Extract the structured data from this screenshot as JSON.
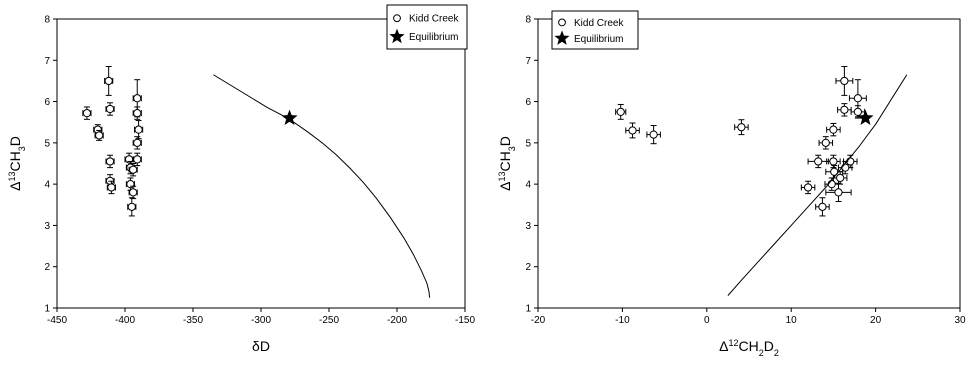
{
  "chart_data": [
    {
      "type": "scatter",
      "xlabel": "δD",
      "ylabel": "Δ¹³CH₃D",
      "xlim": [
        -450,
        -150
      ],
      "ylim": [
        1,
        8
      ],
      "xticks": [
        -450,
        -400,
        -350,
        -300,
        -250,
        -200,
        -150
      ],
      "yticks": [
        1,
        2,
        3,
        4,
        5,
        6,
        7,
        8
      ],
      "legend": {
        "placement": "top-right",
        "entries": [
          "Kidd Creek",
          "Equilibrium"
        ]
      },
      "series": [
        {
          "name": "Kidd Creek",
          "marker": "open-circle",
          "points": [
            {
              "x": -428,
              "y": 5.72,
              "xerr": 3,
              "yerr": 0.15
            },
            {
              "x": -420,
              "y": 5.32,
              "xerr": 3,
              "yerr": 0.12
            },
            {
              "x": -419,
              "y": 5.18,
              "xerr": 3,
              "yerr": 0.12
            },
            {
              "x": -412,
              "y": 6.5,
              "xerr": 3,
              "yerr": 0.35
            },
            {
              "x": -411,
              "y": 5.82,
              "xerr": 3,
              "yerr": 0.15
            },
            {
              "x": -411,
              "y": 4.55,
              "xerr": 3,
              "yerr": 0.15
            },
            {
              "x": -411,
              "y": 4.08,
              "xerr": 3,
              "yerr": 0.15
            },
            {
              "x": -410,
              "y": 3.92,
              "xerr": 3,
              "yerr": 0.15
            },
            {
              "x": -397,
              "y": 4.6,
              "xerr": 3,
              "yerr": 0.15
            },
            {
              "x": -396,
              "y": 4.4,
              "xerr": 3,
              "yerr": 0.15
            },
            {
              "x": -396,
              "y": 4.0,
              "xerr": 3,
              "yerr": 0.15
            },
            {
              "x": -395,
              "y": 3.45,
              "xerr": 3,
              "yerr": 0.22
            },
            {
              "x": -394,
              "y": 4.35,
              "xerr": 3,
              "yerr": 0.15
            },
            {
              "x": -394,
              "y": 3.8,
              "xerr": 3,
              "yerr": 0.15
            },
            {
              "x": -391,
              "y": 6.08,
              "xerr": 3,
              "yerr": 0.45
            },
            {
              "x": -391,
              "y": 5.72,
              "xerr": 3,
              "yerr": 0.15
            },
            {
              "x": -390,
              "y": 5.32,
              "xerr": 3,
              "yerr": 0.22
            },
            {
              "x": -391,
              "y": 5.0,
              "xerr": 3,
              "yerr": 0.15
            },
            {
              "x": -391,
              "y": 4.6,
              "xerr": 3,
              "yerr": 0.15
            }
          ]
        },
        {
          "name": "Equilibrium",
          "marker": "star",
          "points": [
            {
              "x": -279,
              "y": 5.6
            }
          ],
          "curve": [
            [
              -335,
              6.65
            ],
            [
              -325,
              6.45
            ],
            [
              -315,
              6.25
            ],
            [
              -305,
              6.05
            ],
            [
              -295,
              5.85
            ],
            [
              -285,
              5.68
            ],
            [
              -275,
              5.48
            ],
            [
              -265,
              5.25
            ],
            [
              -255,
              5.0
            ],
            [
              -245,
              4.72
            ],
            [
              -235,
              4.4
            ],
            [
              -225,
              4.05
            ],
            [
              -215,
              3.65
            ],
            [
              -205,
              3.2
            ],
            [
              -195,
              2.7
            ],
            [
              -188,
              2.3
            ],
            [
              -182,
              1.9
            ],
            [
              -178,
              1.6
            ],
            [
              -176.5,
              1.4
            ],
            [
              -176,
              1.25
            ]
          ]
        }
      ]
    },
    {
      "type": "scatter",
      "xlabel": "Δ¹²CH₂D₂",
      "ylabel": "Δ¹³CH₃D",
      "xlim": [
        -20,
        30
      ],
      "ylim": [
        1,
        8
      ],
      "xticks": [
        -20,
        -10,
        0,
        10,
        20,
        30
      ],
      "yticks": [
        1,
        2,
        3,
        4,
        5,
        6,
        7,
        8
      ],
      "legend": {
        "placement": "top-left",
        "entries": [
          "Kidd Creek",
          "Equilibrium"
        ]
      },
      "series": [
        {
          "name": "Kidd Creek",
          "marker": "open-circle",
          "points": [
            {
              "x": -10.2,
              "y": 5.75,
              "xerr": 0.6,
              "yerr": 0.18
            },
            {
              "x": -8.8,
              "y": 5.3,
              "xerr": 0.8,
              "yerr": 0.18
            },
            {
              "x": -6.3,
              "y": 5.2,
              "xerr": 0.8,
              "yerr": 0.22
            },
            {
              "x": 4.1,
              "y": 5.38,
              "xerr": 0.8,
              "yerr": 0.18
            },
            {
              "x": 16.3,
              "y": 6.5,
              "xerr": 1.0,
              "yerr": 0.35
            },
            {
              "x": 17.9,
              "y": 6.08,
              "xerr": 1.0,
              "yerr": 0.45
            },
            {
              "x": 16.3,
              "y": 5.8,
              "xerr": 0.8,
              "yerr": 0.15
            },
            {
              "x": 17.9,
              "y": 5.75,
              "xerr": 0.8,
              "yerr": 0.15
            },
            {
              "x": 15.0,
              "y": 5.32,
              "xerr": 0.8,
              "yerr": 0.15
            },
            {
              "x": 14.1,
              "y": 5.0,
              "xerr": 0.8,
              "yerr": 0.15
            },
            {
              "x": 13.2,
              "y": 4.55,
              "xerr": 1.2,
              "yerr": 0.15
            },
            {
              "x": 15.0,
              "y": 4.55,
              "xerr": 0.8,
              "yerr": 0.15
            },
            {
              "x": 17.0,
              "y": 4.55,
              "xerr": 0.8,
              "yerr": 0.15
            },
            {
              "x": 16.4,
              "y": 4.4,
              "xerr": 0.8,
              "yerr": 0.15
            },
            {
              "x": 15.1,
              "y": 4.3,
              "xerr": 1.0,
              "yerr": 0.15
            },
            {
              "x": 15.8,
              "y": 4.15,
              "xerr": 0.8,
              "yerr": 0.15
            },
            {
              "x": 14.8,
              "y": 4.0,
              "xerr": 0.8,
              "yerr": 0.15
            },
            {
              "x": 12.0,
              "y": 3.92,
              "xerr": 0.8,
              "yerr": 0.15
            },
            {
              "x": 15.6,
              "y": 3.8,
              "xerr": 1.5,
              "yerr": 0.22
            },
            {
              "x": 13.7,
              "y": 3.45,
              "xerr": 0.8,
              "yerr": 0.22
            }
          ]
        },
        {
          "name": "Equilibrium",
          "marker": "star",
          "points": [
            {
              "x": 18.8,
              "y": 5.6
            }
          ],
          "curve": [
            [
              2.5,
              1.3
            ],
            [
              4,
              1.65
            ],
            [
              6,
              2.1
            ],
            [
              8,
              2.55
            ],
            [
              10,
              3.0
            ],
            [
              12,
              3.45
            ],
            [
              14,
              3.9
            ],
            [
              16,
              4.4
            ],
            [
              18,
              4.9
            ],
            [
              20,
              5.45
            ],
            [
              22,
              6.1
            ],
            [
              23.7,
              6.65
            ]
          ]
        }
      ]
    }
  ]
}
